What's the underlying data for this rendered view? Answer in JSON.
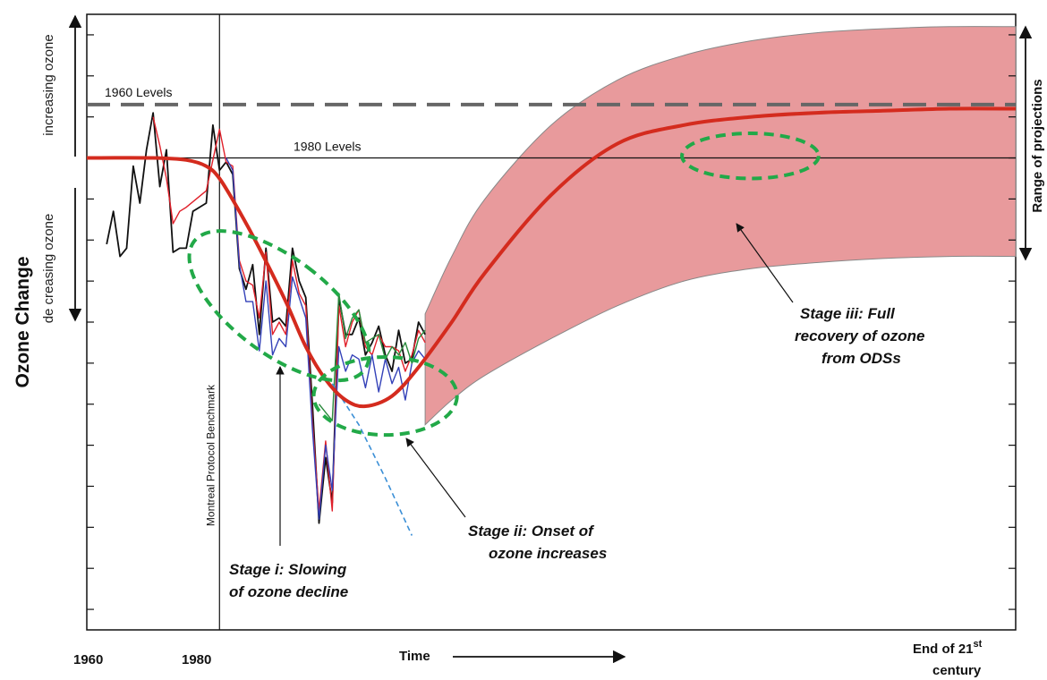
{
  "chart_data": {
    "type": "line",
    "ylabel": "Ozone Change",
    "ylabel_up": "increasing ozone",
    "ylabel_down": "de creasing ozone",
    "xlabel": "Time",
    "x_ticks": [
      "1960",
      "1980"
    ],
    "x_end_label": {
      "main": "End of 21",
      "sup": "st",
      "line2": "century"
    },
    "range_label": "Range of projections",
    "benchmark_label": "Montreal Protocol Benchmark",
    "reference_levels": [
      {
        "label": "1960 Levels",
        "value": 1.3,
        "style": "dashed",
        "color": "#666666"
      },
      {
        "label": "1980 Levels",
        "value": 0.0,
        "style": "solid",
        "color": "#000000"
      }
    ],
    "stages": [
      {
        "lines": [
          "Stage i: Slowing",
          "of ozone decline"
        ]
      },
      {
        "lines": [
          "Stage ii: Onset of",
          "ozone increases"
        ]
      },
      {
        "lines": [
          "Stage iii: Full",
          "recovery of ozone",
          "from ODSs"
        ]
      }
    ],
    "x_domain": [
      1960,
      2100
    ],
    "y_domain": [
      -11.5,
      3.5
    ],
    "benchmark_x": 1980,
    "series": [
      {
        "color": "#d42b1e",
        "style": "smooth",
        "x": [
          1960,
          1970,
          1975,
          1978,
          1980,
          1983,
          1986,
          1990,
          1993,
          1996,
          1999,
          2002,
          2006,
          2010,
          2015,
          2020,
          2030,
          2040,
          2050,
          2060,
          2070,
          2080,
          2090,
          2100
        ],
        "values": [
          0.0,
          0.0,
          -0.05,
          -0.2,
          -0.5,
          -1.3,
          -2.2,
          -3.5,
          -4.6,
          -5.4,
          -5.9,
          -6.05,
          -5.8,
          -5.1,
          -4.0,
          -2.8,
          -0.9,
          0.35,
          0.8,
          1.0,
          1.1,
          1.15,
          1.2,
          1.2
        ]
      },
      {
        "color": "#3b8fd6",
        "style": "dashed",
        "x": [
          1997,
          2001,
          2005,
          2009
        ],
        "values": [
          -5.5,
          -6.5,
          -7.8,
          -9.2
        ]
      },
      {
        "color": "#111111",
        "style": "jagged",
        "x": [
          1963,
          1964,
          1965,
          1966,
          1967,
          1968,
          1969,
          1970,
          1971,
          1972,
          1973,
          1974,
          1975,
          1976,
          1977,
          1978,
          1979,
          1980,
          1981,
          1982,
          1983,
          1984,
          1985,
          1986,
          1987,
          1988,
          1989,
          1990,
          1991,
          1992,
          1993,
          1994,
          1995,
          1996,
          1997,
          1998,
          1999,
          2000,
          2001,
          2002,
          2003,
          2004,
          2005,
          2006,
          2007,
          2008,
          2009,
          2010,
          2011
        ],
        "values": [
          -2.1,
          -1.3,
          -2.4,
          -2.2,
          -0.2,
          -1.1,
          0.2,
          1.1,
          -0.7,
          0.2,
          -2.3,
          -2.2,
          -2.2,
          -1.3,
          -1.2,
          -1.1,
          0.8,
          -0.3,
          -0.1,
          -0.4,
          -2.7,
          -3.2,
          -2.6,
          -4.3,
          -2.2,
          -4.0,
          -3.9,
          -4.1,
          -2.2,
          -3.0,
          -3.4,
          -6.0,
          -8.9,
          -7.3,
          -8.4,
          -3.4,
          -4.3,
          -4.3,
          -3.9,
          -4.8,
          -4.5,
          -4.1,
          -4.8,
          -5.2,
          -4.2,
          -5.0,
          -4.9,
          -4.0,
          -4.3
        ]
      },
      {
        "color": "#e0202a",
        "style": "jagged",
        "x": [
          1970,
          1971,
          1972,
          1973,
          1974,
          1975,
          1978,
          1980,
          1981,
          1982,
          1983,
          1984,
          1985,
          1986,
          1987,
          1988,
          1989,
          1990,
          1991,
          1992,
          1993,
          1994,
          1995,
          1996,
          1997,
          1998,
          1999,
          2000,
          2001,
          2002,
          2003,
          2004,
          2005,
          2006,
          2007,
          2008,
          2009,
          2010,
          2011
        ],
        "values": [
          1.0,
          0.3,
          -0.5,
          -1.6,
          -1.3,
          -1.2,
          -0.8,
          0.7,
          -0.1,
          -0.2,
          -2.5,
          -3.0,
          -3.1,
          -3.9,
          -2.3,
          -4.3,
          -4.0,
          -4.3,
          -2.5,
          -3.3,
          -3.6,
          -6.4,
          -8.6,
          -6.9,
          -8.6,
          -3.6,
          -4.6,
          -4.0,
          -3.7,
          -4.6,
          -4.8,
          -4.3,
          -4.6,
          -4.6,
          -4.7,
          -5.2,
          -4.8,
          -4.2,
          -4.5
        ]
      },
      {
        "color": "#3341b8",
        "style": "jagged",
        "x": [
          1981,
          1982,
          1983,
          1984,
          1985,
          1986,
          1987,
          1988,
          1989,
          1990,
          1991,
          1992,
          1993,
          1994,
          1995,
          1996,
          1997,
          1998,
          1999,
          2000,
          2001,
          2002,
          2003,
          2004,
          2005,
          2006,
          2007,
          2008,
          2009,
          2010,
          2011
        ],
        "values": [
          0.0,
          -0.3,
          -2.6,
          -3.5,
          -3.5,
          -4.7,
          -3.0,
          -4.8,
          -4.4,
          -4.6,
          -2.9,
          -3.4,
          -3.9,
          -6.6,
          -8.8,
          -7.0,
          -8.1,
          -4.6,
          -5.2,
          -4.8,
          -4.9,
          -5.6,
          -4.8,
          -5.7,
          -4.9,
          -5.5,
          -5.1,
          -5.9,
          -5.0,
          -4.7,
          -4.9
        ]
      },
      {
        "color": "#2a8a3c",
        "style": "jagged",
        "x": [
          1995,
          1996,
          1997,
          1998,
          1999,
          2000,
          2001,
          2002,
          2003,
          2004,
          2005,
          2006,
          2007,
          2008,
          2009,
          2010,
          2011
        ],
        "values": [
          -6.0,
          -6.2,
          -6.4,
          -3.3,
          -4.4,
          -3.9,
          -3.7,
          -4.5,
          -4.4,
          -4.3,
          -4.9,
          -4.6,
          -4.8,
          -4.5,
          -5.0,
          -4.4,
          -4.2
        ]
      }
    ],
    "projection_band": {
      "color": "#e89a9c",
      "x": [
        2011,
        2015,
        2020,
        2030,
        2040,
        2050,
        2060,
        2070,
        2080,
        2090,
        2100
      ],
      "upper": [
        -3.8,
        -2.4,
        -1.0,
        0.8,
        1.9,
        2.5,
        2.85,
        3.05,
        3.15,
        3.2,
        3.2
      ],
      "lower": [
        -6.5,
        -5.9,
        -5.3,
        -4.4,
        -3.6,
        -3.0,
        -2.7,
        -2.55,
        -2.45,
        -2.4,
        -2.4
      ]
    },
    "highlight_ellipses": [
      {
        "stage": "i",
        "cx": 1989,
        "cy": -3.6,
        "rx": 7.2,
        "ry": 2.6,
        "angle": -53
      },
      {
        "stage": "ii",
        "cx": 2005,
        "cy": -5.8,
        "rx": 10.8,
        "ry": 0.95,
        "angle": 0
      },
      {
        "stage": "iii",
        "cx": 2060,
        "cy": 0.05,
        "rx": 10.3,
        "ry": 0.55,
        "angle": 0
      }
    ]
  }
}
